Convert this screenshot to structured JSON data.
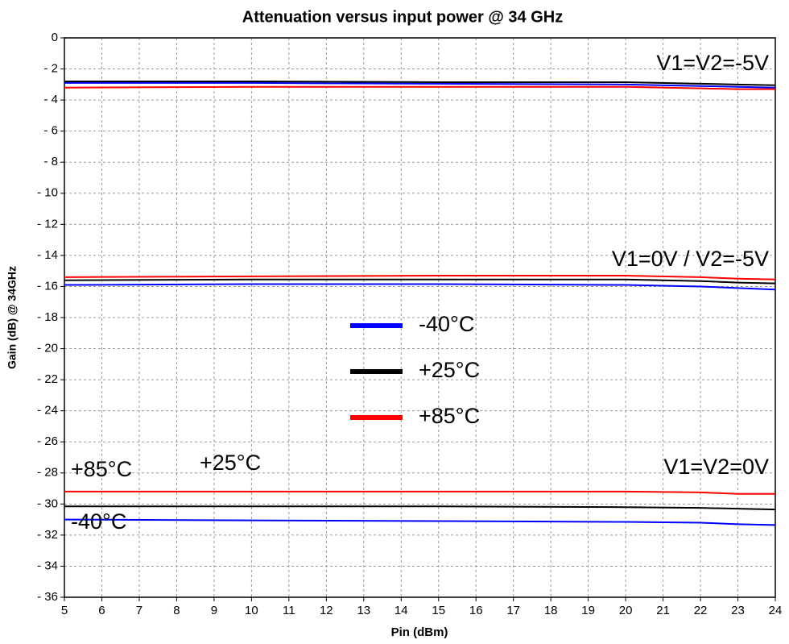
{
  "chart_data": {
    "type": "line",
    "title": "Attenuation versus input power @ 34 GHz",
    "x_label": "Pin (dBm)",
    "y_label": "Gain (dB) @ 34GHz",
    "x": [
      5,
      10,
      15,
      20,
      22,
      23,
      24
    ],
    "series": [
      {
        "name": "-40°C",
        "color": "#0000ff",
        "values": [
          -2.9,
          -2.9,
          -2.95,
          -3.0,
          -3.1,
          -3.15,
          -3.2
        ]
      },
      {
        "name": "+25°C",
        "color": "#000000",
        "values": [
          -2.8,
          -2.8,
          -2.85,
          -2.85,
          -2.95,
          -3.0,
          -3.05
        ]
      },
      {
        "name": "+85°C",
        "color": "#ff0000",
        "values": [
          -3.2,
          -3.15,
          -3.15,
          -3.15,
          -3.25,
          -3.3,
          -3.3
        ]
      },
      {
        "name": "-40°C",
        "color": "#0000ff",
        "values": [
          -15.9,
          -15.85,
          -15.85,
          -15.9,
          -16.0,
          -16.1,
          -16.2
        ]
      },
      {
        "name": "+25°C",
        "color": "#000000",
        "values": [
          -15.6,
          -15.55,
          -15.55,
          -15.55,
          -15.65,
          -15.75,
          -15.8
        ]
      },
      {
        "name": "+85°C",
        "color": "#ff0000",
        "values": [
          -15.4,
          -15.35,
          -15.3,
          -15.3,
          -15.4,
          -15.5,
          -15.55
        ]
      },
      {
        "name": "-40°C",
        "color": "#0000ff",
        "values": [
          -31.0,
          -31.05,
          -31.1,
          -31.15,
          -31.2,
          -31.3,
          -31.35
        ]
      },
      {
        "name": "+25°C",
        "color": "#000000",
        "values": [
          -30.15,
          -30.15,
          -30.15,
          -30.2,
          -30.25,
          -30.3,
          -30.35
        ]
      },
      {
        "name": "+85°C",
        "color": "#ff0000",
        "values": [
          -29.2,
          -29.2,
          -29.2,
          -29.2,
          -29.25,
          -29.35,
          -29.35
        ]
      }
    ],
    "annotations": [
      "V1=V2=-5V",
      "V1=0V / V2=-5V",
      "V1=V2=0V",
      "+85°C",
      "+25°C",
      "-40°C"
    ],
    "xlim": [
      5,
      24
    ],
    "xticks": [
      5,
      6,
      7,
      8,
      9,
      10,
      11,
      12,
      13,
      14,
      15,
      16,
      17,
      18,
      19,
      20,
      21,
      22,
      23,
      24
    ],
    "ylim": [
      -36,
      0
    ],
    "yticks": [
      0,
      {
        "value": -2,
        "label": "- 2"
      },
      {
        "value": -4,
        "label": "- 4"
      },
      {
        "value": -6,
        "label": "- 6"
      },
      {
        "value": -8,
        "label": "- 8"
      },
      {
        "value": -10,
        "label": "- 10"
      },
      {
        "value": -12,
        "label": "- 12"
      },
      {
        "value": -14,
        "label": "- 14"
      },
      {
        "value": -16,
        "label": "- 16"
      },
      {
        "value": -18,
        "label": "- 18"
      },
      {
        "value": -20,
        "label": "- 20"
      },
      {
        "value": -22,
        "label": "- 22"
      },
      {
        "value": -24,
        "label": "- 24"
      },
      {
        "value": -26,
        "label": "- 26"
      },
      {
        "value": -28,
        "label": "- 28"
      },
      {
        "value": -30,
        "label": "- 30"
      },
      {
        "value": -32,
        "label": "- 32"
      },
      {
        "value": -34,
        "label": "- 34"
      },
      {
        "value": -36,
        "label": "- 36"
      }
    ],
    "grid": true,
    "legend": "center"
  }
}
